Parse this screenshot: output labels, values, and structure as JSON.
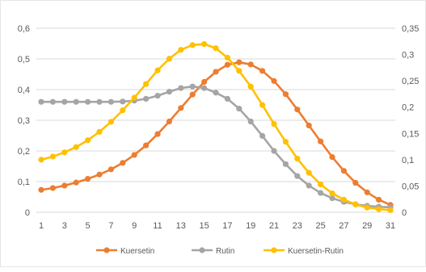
{
  "chart_data": {
    "type": "line",
    "title": "",
    "xlabel": "",
    "ylabel": "",
    "x": [
      1,
      2,
      3,
      4,
      5,
      6,
      7,
      8,
      9,
      10,
      11,
      12,
      13,
      14,
      15,
      16,
      17,
      18,
      19,
      20,
      21,
      22,
      23,
      24,
      25,
      26,
      27,
      28,
      29,
      30,
      31
    ],
    "x_tick_labels": [
      "1",
      "3",
      "5",
      "7",
      "9",
      "11",
      "13",
      "15",
      "17",
      "19",
      "21",
      "23",
      "25",
      "27",
      "29",
      "31"
    ],
    "y_left": {
      "ticks": [
        "0",
        "0,1",
        "0,2",
        "0,3",
        "0,4",
        "0,5",
        "0,6"
      ],
      "ylim": [
        0,
        0.6
      ]
    },
    "y_right": {
      "ticks": [
        "0",
        "0,05",
        "0,1",
        "0,15",
        "0,2",
        "0,25",
        "0,3",
        "0,35"
      ],
      "ylim": [
        0,
        0.35
      ]
    },
    "grid": true,
    "legend_position": "bottom",
    "series": [
      {
        "name": "Kuersetin",
        "axis": "left",
        "color": "#ED7D31",
        "values": [
          0.073,
          0.079,
          0.087,
          0.097,
          0.109,
          0.123,
          0.14,
          0.161,
          0.187,
          0.218,
          0.255,
          0.296,
          0.34,
          0.384,
          0.425,
          0.458,
          0.481,
          0.489,
          0.482,
          0.461,
          0.428,
          0.385,
          0.335,
          0.283,
          0.231,
          0.18,
          0.135,
          0.096,
          0.065,
          0.041,
          0.024
        ]
      },
      {
        "name": "Rutin",
        "axis": "left",
        "color": "#A5A5A5",
        "values": [
          0.36,
          0.36,
          0.36,
          0.36,
          0.36,
          0.36,
          0.36,
          0.361,
          0.364,
          0.37,
          0.38,
          0.393,
          0.405,
          0.41,
          0.405,
          0.39,
          0.37,
          0.338,
          0.296,
          0.249,
          0.2,
          0.157,
          0.118,
          0.087,
          0.063,
          0.046,
          0.034,
          0.026,
          0.021,
          0.018,
          0.016
        ]
      },
      {
        "name": "Kuersetin-Rutin",
        "axis": "right",
        "color": "#FFC000",
        "values": [
          0.1,
          0.106,
          0.114,
          0.124,
          0.137,
          0.153,
          0.172,
          0.194,
          0.218,
          0.244,
          0.27,
          0.292,
          0.309,
          0.318,
          0.32,
          0.312,
          0.294,
          0.269,
          0.239,
          0.204,
          0.168,
          0.134,
          0.102,
          0.075,
          0.053,
          0.036,
          0.024,
          0.015,
          0.009,
          0.006,
          0.004
        ]
      }
    ]
  }
}
